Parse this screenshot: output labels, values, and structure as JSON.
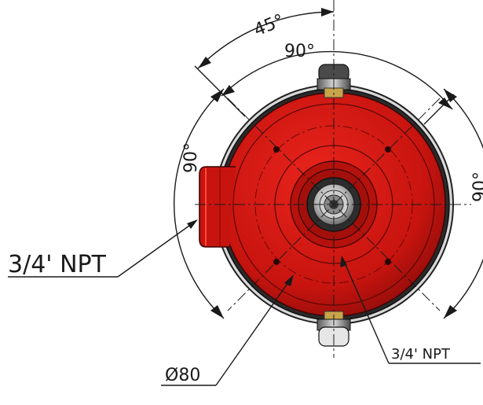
{
  "drawing": {
    "body_color": "#c8140f",
    "body_dark": "#7a0a08",
    "labels": {
      "angle_45": "45°",
      "angle_top_90": "90°",
      "angle_left_90": "90°",
      "angle_right_90": "90°",
      "npt_left": "3/4' NPT",
      "npt_right": "3/4' NPT",
      "diameter": "Ø80"
    }
  }
}
